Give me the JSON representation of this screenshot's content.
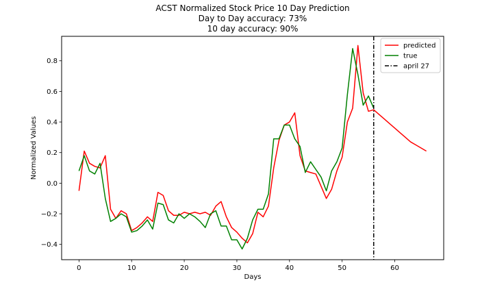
{
  "chart_data": {
    "type": "line",
    "title_lines": [
      "ACST Normalized Stock Price 10 Day Prediction",
      "Day to Day accuracy: 73%",
      "10 day accuracy: 90%"
    ],
    "xlabel": "Days",
    "ylabel": "Normalized Values",
    "xlim": [
      -3.3,
      69.3
    ],
    "ylim": [
      -0.5,
      0.96
    ],
    "xticks": [
      0,
      10,
      20,
      30,
      40,
      50,
      60
    ],
    "yticks": [
      -0.4,
      -0.2,
      0.0,
      0.2,
      0.4,
      0.6,
      0.8
    ],
    "ytick_labels": [
      "−0.4",
      "−0.2",
      "0.0",
      "0.2",
      "0.4",
      "0.6",
      "0.8"
    ],
    "grid": false,
    "legend_position": "top-right",
    "series": [
      {
        "name": "predicted",
        "color": "#ff0000",
        "x": [
          0,
          1,
          2,
          3,
          4,
          5,
          6,
          7,
          8,
          9,
          10,
          11,
          12,
          13,
          14,
          15,
          16,
          17,
          18,
          19,
          20,
          21,
          22,
          23,
          24,
          25,
          26,
          27,
          28,
          29,
          30,
          31,
          32,
          33,
          34,
          35,
          36,
          37,
          38,
          39,
          40,
          41,
          42,
          43,
          44,
          45,
          46,
          47,
          48,
          49,
          50,
          51,
          52,
          53,
          54,
          55,
          56,
          57,
          58,
          59,
          60,
          61,
          62,
          63,
          64,
          65,
          66
        ],
        "y": [
          -0.05,
          0.21,
          0.13,
          0.11,
          0.1,
          0.18,
          -0.17,
          -0.23,
          -0.18,
          -0.2,
          -0.31,
          -0.29,
          -0.26,
          -0.22,
          -0.25,
          -0.06,
          -0.08,
          -0.18,
          -0.21,
          -0.21,
          -0.19,
          -0.2,
          -0.19,
          -0.2,
          -0.19,
          -0.21,
          -0.15,
          -0.12,
          -0.22,
          -0.29,
          -0.32,
          -0.36,
          -0.39,
          -0.33,
          -0.19,
          -0.22,
          -0.15,
          0.1,
          0.28,
          0.38,
          0.4,
          0.46,
          0.18,
          0.08,
          0.07,
          0.06,
          -0.02,
          -0.1,
          -0.04,
          0.08,
          0.17,
          0.4,
          0.49,
          0.9,
          0.59,
          0.47,
          0.48,
          0.45,
          0.42,
          0.39,
          0.36,
          0.33,
          0.3,
          0.27,
          0.25,
          0.23,
          0.21
        ]
      },
      {
        "name": "true",
        "color": "#008000",
        "x": [
          0,
          1,
          2,
          3,
          4,
          5,
          6,
          7,
          8,
          9,
          10,
          11,
          12,
          13,
          14,
          15,
          16,
          17,
          18,
          19,
          20,
          21,
          22,
          23,
          24,
          25,
          26,
          27,
          28,
          29,
          30,
          31,
          32,
          33,
          34,
          35,
          36,
          37,
          38,
          39,
          40,
          41,
          42,
          43,
          44,
          45,
          46,
          47,
          48,
          49,
          50,
          51,
          52,
          53,
          54,
          55,
          56
        ],
        "y": [
          0.08,
          0.18,
          0.08,
          0.06,
          0.13,
          -0.1,
          -0.25,
          -0.23,
          -0.2,
          -0.22,
          -0.32,
          -0.31,
          -0.28,
          -0.24,
          -0.3,
          -0.13,
          -0.14,
          -0.24,
          -0.26,
          -0.2,
          -0.23,
          -0.2,
          -0.22,
          -0.25,
          -0.29,
          -0.2,
          -0.18,
          -0.28,
          -0.28,
          -0.37,
          -0.37,
          -0.43,
          -0.36,
          -0.24,
          -0.17,
          -0.17,
          -0.07,
          0.29,
          0.29,
          0.38,
          0.38,
          0.29,
          0.24,
          0.07,
          0.14,
          0.09,
          0.04,
          -0.05,
          0.08,
          0.14,
          0.23,
          0.58,
          0.88,
          0.71,
          0.51,
          0.57,
          0.49
        ]
      },
      {
        "name": "april 27",
        "color": "#000000",
        "style": "dashdot",
        "vertical_x": 56
      }
    ]
  }
}
